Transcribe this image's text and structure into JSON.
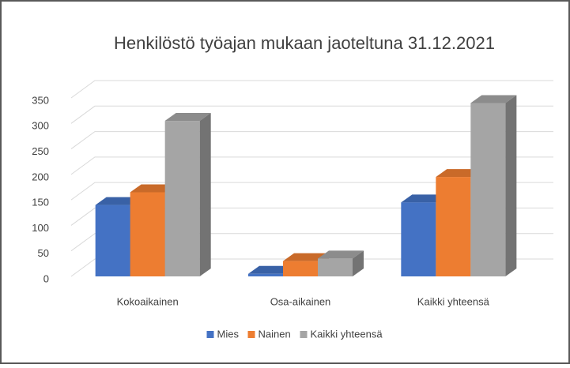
{
  "chart_data": {
    "type": "bar3d",
    "title": "Henkilöstö työajan mukaan jaoteltuna 31.12.2021",
    "categories": [
      "Kokoaikainen",
      "Osa-aikainen",
      "Kaikki yhteensä"
    ],
    "series": [
      {
        "name": "Mies",
        "color": "#4472c4",
        "values": [
          140,
          5,
          145
        ]
      },
      {
        "name": "Nainen",
        "color": "#ed7d31",
        "values": [
          165,
          30,
          195
        ]
      },
      {
        "name": "Kaikki yhteensä",
        "color": "#a5a5a5",
        "values": [
          305,
          35,
          340
        ]
      }
    ],
    "ylim": [
      0,
      350
    ],
    "yticks": [
      0,
      50,
      100,
      150,
      200,
      250,
      300,
      350
    ],
    "grid": true,
    "legend": "bottom"
  }
}
